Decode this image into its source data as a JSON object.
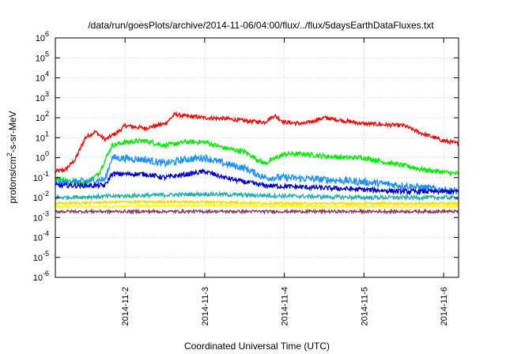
{
  "chart_data": {
    "type": "line",
    "title": "/data/run/goesPlots/archive/2014-11-06/04:00/flux/../flux/5daysEarthDataFluxes.txt",
    "xlabel": "Coordinated Universal Time (UTC)",
    "ylabel_parts": [
      "protons/cm",
      "2",
      "-s-sr-MeV"
    ],
    "y_scale": "log",
    "ylim": [
      1e-06,
      1000000.0
    ],
    "x_range_days": [
      "2014-11-01T03:00",
      "2014-11-06T04:30"
    ],
    "x_ticks": [
      "2014-11-2",
      "2014-11-3",
      "2014-11-4",
      "2014-11-5",
      "2014-11-6"
    ],
    "y_tick_exponents": [
      -6,
      -5,
      -4,
      -3,
      -2,
      -1,
      0,
      1,
      2,
      3,
      4,
      5,
      6
    ],
    "grid": true,
    "series": [
      {
        "color": "#ff0000",
        "noise": 0.1,
        "points": [
          [
            "2014-11-01T03:00",
            0.2
          ],
          [
            "2014-11-01T06:00",
            0.25
          ],
          [
            "2014-11-01T09:00",
            0.8
          ],
          [
            "2014-11-01T12:00",
            10
          ],
          [
            "2014-11-01T15:00",
            20
          ],
          [
            "2014-11-01T18:00",
            8
          ],
          [
            "2014-11-01T22:00",
            20
          ],
          [
            "2014-11-02T00:00",
            40
          ],
          [
            "2014-11-02T06:00",
            30
          ],
          [
            "2014-11-02T12:00",
            50
          ],
          [
            "2014-11-02T15:00",
            150
          ],
          [
            "2014-11-02T18:00",
            120
          ],
          [
            "2014-11-03T00:00",
            100
          ],
          [
            "2014-11-03T06:00",
            90
          ],
          [
            "2014-11-03T12:00",
            70
          ],
          [
            "2014-11-03T18:00",
            60
          ],
          [
            "2014-11-03T21:00",
            130
          ],
          [
            "2014-11-04T00:00",
            60
          ],
          [
            "2014-11-04T06:00",
            50
          ],
          [
            "2014-11-04T12:00",
            100
          ],
          [
            "2014-11-04T18:00",
            70
          ],
          [
            "2014-11-05T00:00",
            50
          ],
          [
            "2014-11-05T06:00",
            45
          ],
          [
            "2014-11-05T12:00",
            40
          ],
          [
            "2014-11-05T18:00",
            15
          ],
          [
            "2014-11-06T00:00",
            7
          ],
          [
            "2014-11-06T04:30",
            5
          ]
        ]
      },
      {
        "color": "#00ee00",
        "noise": 0.12,
        "points": [
          [
            "2014-11-01T03:00",
            0.1
          ],
          [
            "2014-11-01T12:00",
            0.05
          ],
          [
            "2014-11-01T16:00",
            0.15
          ],
          [
            "2014-11-01T20:00",
            4
          ],
          [
            "2014-11-02T00:00",
            6
          ],
          [
            "2014-11-02T06:00",
            7
          ],
          [
            "2014-11-02T12:00",
            4
          ],
          [
            "2014-11-02T18:00",
            6
          ],
          [
            "2014-11-03T00:00",
            6
          ],
          [
            "2014-11-03T06:00",
            3
          ],
          [
            "2014-11-03T12:00",
            2
          ],
          [
            "2014-11-03T18:00",
            0.5
          ],
          [
            "2014-11-04T00:00",
            1.5
          ],
          [
            "2014-11-04T06:00",
            1.5
          ],
          [
            "2014-11-04T12:00",
            1.2
          ],
          [
            "2014-11-04T18:00",
            1.0
          ],
          [
            "2014-11-05T00:00",
            1.0
          ],
          [
            "2014-11-05T06:00",
            0.6
          ],
          [
            "2014-11-05T12:00",
            0.4
          ],
          [
            "2014-11-05T18:00",
            0.25
          ],
          [
            "2014-11-06T04:30",
            0.15
          ]
        ]
      },
      {
        "color": "#1e90ff",
        "noise": 0.18,
        "points": [
          [
            "2014-11-01T03:00",
            0.05
          ],
          [
            "2014-11-01T18:00",
            0.08
          ],
          [
            "2014-11-01T20:00",
            1.0
          ],
          [
            "2014-11-02T06:00",
            0.8
          ],
          [
            "2014-11-02T12:00",
            0.5
          ],
          [
            "2014-11-02T18:00",
            0.8
          ],
          [
            "2014-11-03T00:00",
            1.0
          ],
          [
            "2014-11-03T06:00",
            0.5
          ],
          [
            "2014-11-03T12:00",
            0.3
          ],
          [
            "2014-11-03T18:00",
            0.1
          ],
          [
            "2014-11-04T00:00",
            0.1
          ],
          [
            "2014-11-04T12:00",
            0.08
          ],
          [
            "2014-11-05T00:00",
            0.06
          ],
          [
            "2014-11-05T12:00",
            0.04
          ],
          [
            "2014-11-06T04:30",
            0.02
          ]
        ]
      },
      {
        "color": "#0000cd",
        "noise": 0.12,
        "points": [
          [
            "2014-11-01T03:00",
            0.04
          ],
          [
            "2014-11-01T18:00",
            0.04
          ],
          [
            "2014-11-01T20:00",
            0.15
          ],
          [
            "2014-11-02T06:00",
            0.15
          ],
          [
            "2014-11-02T12:00",
            0.1
          ],
          [
            "2014-11-03T00:00",
            0.2
          ],
          [
            "2014-11-03T06:00",
            0.1
          ],
          [
            "2014-11-03T12:00",
            0.06
          ],
          [
            "2014-11-03T18:00",
            0.04
          ],
          [
            "2014-11-04T12:00",
            0.03
          ],
          [
            "2014-11-05T00:00",
            0.025
          ],
          [
            "2014-11-05T12:00",
            0.02
          ],
          [
            "2014-11-06T04:30",
            0.02
          ]
        ]
      },
      {
        "color": "#20b2aa",
        "noise": 0.1,
        "points": [
          [
            "2014-11-01T03:00",
            0.01
          ],
          [
            "2014-11-03T00:00",
            0.015
          ],
          [
            "2014-11-04T00:00",
            0.012
          ],
          [
            "2014-11-05T00:00",
            0.01
          ],
          [
            "2014-11-06T04:30",
            0.01
          ]
        ]
      },
      {
        "color": "#ffd700",
        "noise": 0.06,
        "points": [
          [
            "2014-11-01T03:00",
            0.005
          ],
          [
            "2014-11-02T00:00",
            0.006
          ],
          [
            "2014-11-03T00:00",
            0.006
          ],
          [
            "2014-11-04T00:00",
            0.005
          ],
          [
            "2014-11-05T00:00",
            0.005
          ],
          [
            "2014-11-06T04:30",
            0.005
          ]
        ]
      },
      {
        "color": "#ffff00",
        "noise": 0.06,
        "points": [
          [
            "2014-11-01T03:00",
            0.0035
          ],
          [
            "2014-11-03T00:00",
            0.004
          ],
          [
            "2014-11-04T12:00",
            0.0035
          ],
          [
            "2014-11-06T04:30",
            0.0035
          ]
        ]
      },
      {
        "color": "#8b3a62",
        "noise": 0.07,
        "points": [
          [
            "2014-11-01T03:00",
            0.002
          ],
          [
            "2014-11-06T04:30",
            0.002
          ]
        ]
      }
    ]
  }
}
